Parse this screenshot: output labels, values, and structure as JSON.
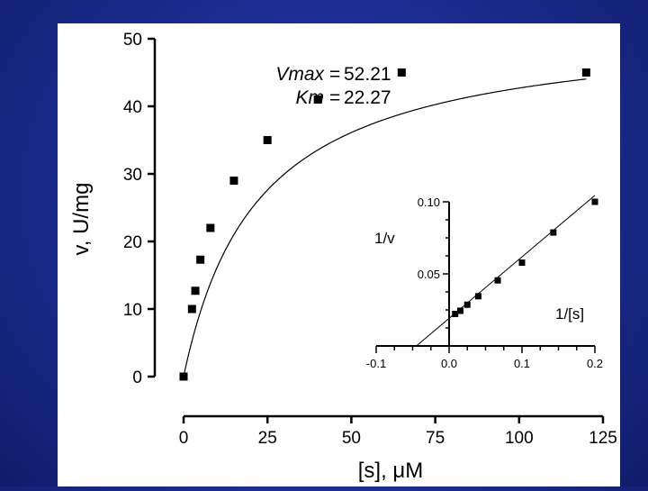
{
  "background_color": "#1a2a8c",
  "panel_color": "#ffffff",
  "chart_data": [
    {
      "type": "scatter",
      "role": "main",
      "xlabel": "[s], μM",
      "ylabel": "v, U/mg",
      "xlim": [
        0,
        125
      ],
      "ylim": [
        0,
        50
      ],
      "xticks": [
        0,
        25,
        50,
        75,
        100,
        125
      ],
      "xtick_labels": [
        "0",
        "25",
        "50",
        "75",
        "100",
        "125"
      ],
      "yticks": [
        0,
        10,
        20,
        30,
        40,
        50
      ],
      "ytick_labels": [
        "0",
        "10",
        "20",
        "30",
        "40",
        "50"
      ],
      "grid": false,
      "series": [
        {
          "x": [
            0,
            2.5,
            3.5,
            5,
            8,
            15,
            25,
            40,
            65,
            120
          ],
          "y": [
            0,
            10,
            12.7,
            17.3,
            22,
            29,
            35,
            41,
            45,
            45
          ]
        }
      ],
      "fit": {
        "model": "michaelis-menten",
        "vmax": 52.21,
        "km": 22.27
      },
      "annotations": [
        {
          "name": "Vmax",
          "value": "52.21"
        },
        {
          "name": "Km",
          "value": "22.27"
        }
      ]
    },
    {
      "type": "scatter",
      "role": "inset",
      "xlabel": "1/[s]",
      "ylabel": "1/v",
      "xlim": [
        -0.1,
        0.2
      ],
      "ylim": [
        0,
        0.1
      ],
      "xticks": [
        -0.1,
        0,
        0.1,
        0.2
      ],
      "xtick_labels": [
        "-0.1",
        "0.0",
        "0.1",
        "0.2"
      ],
      "yticks": [
        0.05,
        0.1
      ],
      "ytick_labels": [
        "0.05",
        "0.10"
      ],
      "grid": false,
      "series": [
        {
          "x": [
            0.0083,
            0.0154,
            0.025,
            0.04,
            0.0667,
            0.1,
            0.143,
            0.2
          ],
          "y": [
            0.0222,
            0.0244,
            0.0286,
            0.0345,
            0.0455,
            0.0578,
            0.0787,
            0.1
          ]
        }
      ],
      "fit_line": {
        "slope": 0.4265,
        "intercept": 0.01915
      }
    }
  ]
}
